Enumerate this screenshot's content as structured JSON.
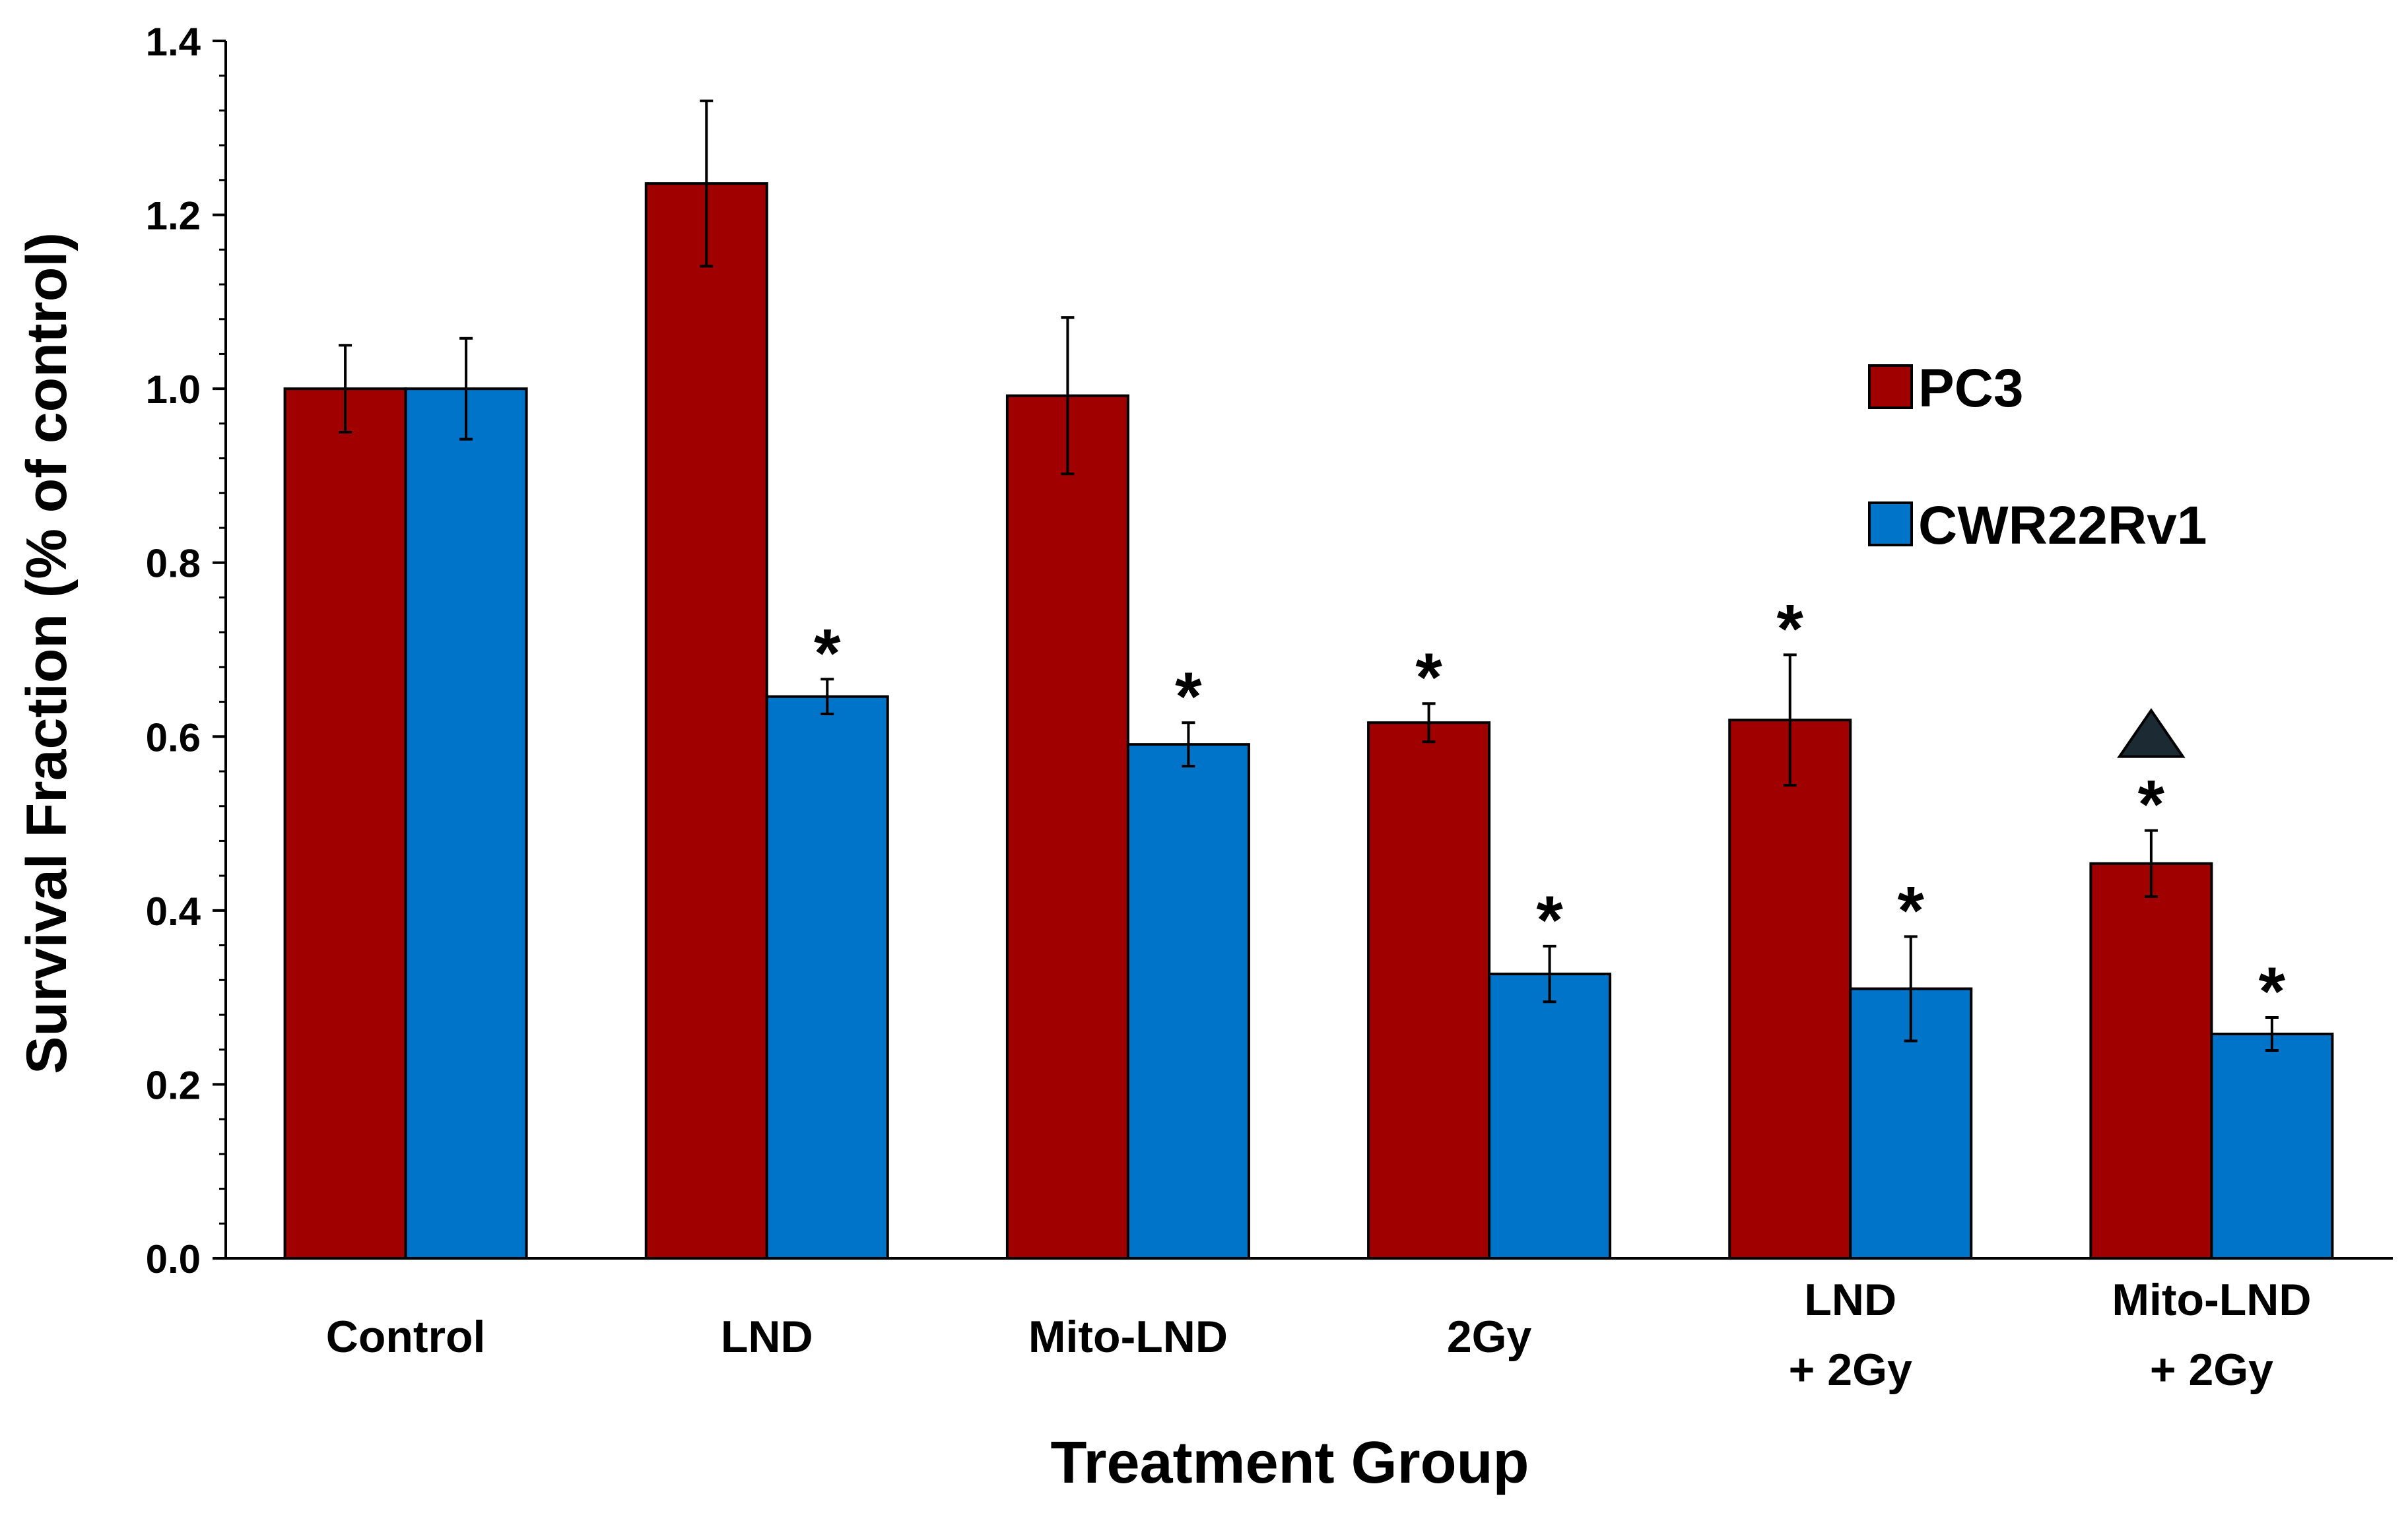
{
  "chart_data": {
    "type": "bar",
    "title": "",
    "xlabel": "Treatment Group",
    "ylabel": "Survival Fraction (% of control)",
    "ylim": [
      0,
      1.4
    ],
    "yticks": [
      "0.0",
      "0.2",
      "0.4",
      "0.6",
      "0.8",
      "1.0",
      "1.2",
      "1.4"
    ],
    "yticks_values": [
      0,
      0.2,
      0.4,
      0.6,
      0.8,
      1.0,
      1.2,
      1.4
    ],
    "categories": [
      [
        "Control"
      ],
      [
        "LND"
      ],
      [
        "Mito-LND"
      ],
      [
        "2Gy"
      ],
      [
        "LND",
        "+ 2Gy"
      ],
      [
        "Mito-LND",
        "+ 2Gy"
      ]
    ],
    "legend_position": "right",
    "series": [
      {
        "name": "PC3",
        "color": "#A10000",
        "values": [
          1.0,
          1.236,
          0.992,
          0.616,
          0.619,
          0.454
        ],
        "errors": [
          0.05,
          0.095,
          0.09,
          0.022,
          0.075,
          0.038
        ],
        "annotations": [
          "",
          "",
          "",
          "*",
          "*",
          "*"
        ],
        "extra_marker": [
          false,
          false,
          false,
          false,
          false,
          true
        ]
      },
      {
        "name": "CWR22Rv1",
        "color": "#0074C9",
        "values": [
          1.0,
          0.646,
          0.591,
          0.327,
          0.31,
          0.258
        ],
        "errors": [
          0.058,
          0.02,
          0.025,
          0.032,
          0.06,
          0.019
        ],
        "annotations": [
          "",
          "*",
          "*",
          "*",
          "*",
          "*"
        ],
        "extra_marker": [
          false,
          false,
          false,
          false,
          false,
          false
        ]
      }
    ],
    "marker_colors": {
      "triangle": "#1B2A33"
    }
  }
}
